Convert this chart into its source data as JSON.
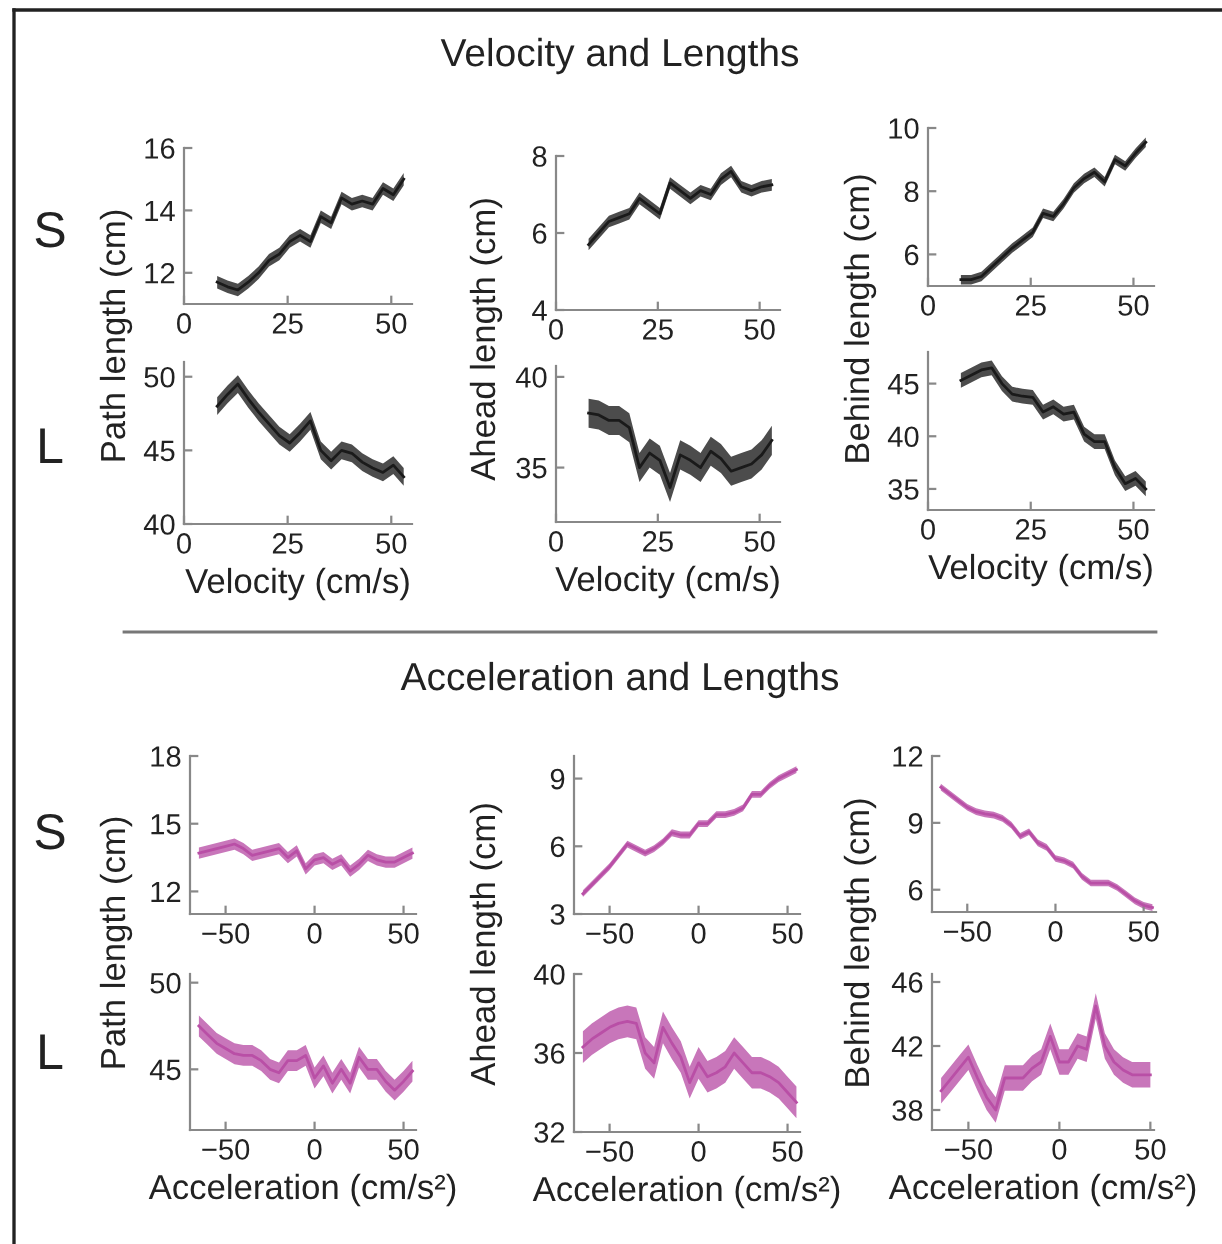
{
  "chart_data": [
    {
      "type": "other",
      "title": "Velocity and Lengths"
    },
    {
      "type": "line",
      "annotations": [
        "S"
      ],
      "ylabel": "Path length (cm)",
      "xlim": [
        0,
        55
      ],
      "xticks": [
        0,
        25,
        50
      ],
      "ylim": [
        11,
        16
      ],
      "yticks": [
        12,
        14,
        16
      ],
      "x": [
        8,
        10.5,
        13,
        15.5,
        18,
        20.5,
        23,
        25.5,
        28,
        30.5,
        33,
        35.5,
        38,
        40.5,
        43,
        45.5,
        48,
        50.5,
        53
      ],
      "series": [
        {
          "color": "#1a1a1a",
          "values": [
            11.7,
            11.55,
            11.45,
            11.7,
            12.0,
            12.4,
            12.6,
            13.0,
            13.2,
            13.0,
            13.8,
            13.6,
            14.4,
            14.2,
            14.3,
            14.2,
            14.7,
            14.5,
            15.0
          ],
          "lower": [
            11.5,
            11.35,
            11.25,
            11.5,
            11.8,
            12.2,
            12.4,
            12.8,
            13.0,
            12.8,
            13.6,
            13.4,
            14.2,
            14.0,
            14.1,
            14.0,
            14.5,
            14.3,
            14.8
          ],
          "upper": [
            11.9,
            11.75,
            11.65,
            11.9,
            12.2,
            12.6,
            12.8,
            13.2,
            13.4,
            13.2,
            14.0,
            13.8,
            14.6,
            14.4,
            14.5,
            14.4,
            14.9,
            14.7,
            15.2
          ]
        }
      ]
    },
    {
      "type": "line",
      "ylabel": "Ahead length (cm)",
      "xlim": [
        0,
        55
      ],
      "xticks": [
        0,
        25,
        50
      ],
      "ylim": [
        4,
        8
      ],
      "yticks": [
        4,
        6,
        8
      ],
      "x": [
        8,
        10.5,
        13,
        15.5,
        18,
        20.5,
        23,
        25.5,
        28,
        30.5,
        33,
        35.5,
        38,
        40.5,
        43,
        45.5,
        48,
        50.5,
        53
      ],
      "series": [
        {
          "color": "#1a1a1a",
          "values": [
            5.7,
            6.0,
            6.3,
            6.4,
            6.5,
            6.9,
            6.7,
            6.5,
            7.3,
            7.1,
            6.9,
            7.1,
            7.0,
            7.4,
            7.6,
            7.2,
            7.1,
            7.2,
            7.25
          ],
          "lower": [
            5.55,
            5.85,
            6.15,
            6.25,
            6.35,
            6.75,
            6.55,
            6.35,
            7.15,
            6.95,
            6.75,
            6.95,
            6.85,
            7.25,
            7.45,
            7.05,
            6.95,
            7.05,
            7.1
          ],
          "upper": [
            5.85,
            6.15,
            6.45,
            6.55,
            6.65,
            7.05,
            6.85,
            6.65,
            7.45,
            7.25,
            7.05,
            7.25,
            7.15,
            7.55,
            7.75,
            7.35,
            7.25,
            7.35,
            7.4
          ]
        }
      ]
    },
    {
      "type": "line",
      "ylabel": "Behind length (cm)",
      "xlim": [
        0,
        55
      ],
      "xticks": [
        0,
        25,
        50
      ],
      "ylim": [
        5,
        10
      ],
      "yticks": [
        6,
        8,
        10
      ],
      "x": [
        8,
        10.5,
        13,
        15.5,
        18,
        20.5,
        23,
        25.5,
        28,
        30.5,
        33,
        35.5,
        38,
        40.5,
        43,
        45.5,
        48,
        50.5,
        53
      ],
      "series": [
        {
          "color": "#1a1a1a",
          "values": [
            5.2,
            5.2,
            5.3,
            5.6,
            5.9,
            6.2,
            6.45,
            6.7,
            7.3,
            7.2,
            7.6,
            8.1,
            8.4,
            8.6,
            8.3,
            9.0,
            8.8,
            9.2,
            9.55
          ],
          "lower": [
            5.05,
            5.05,
            5.15,
            5.45,
            5.75,
            6.05,
            6.3,
            6.55,
            7.15,
            7.05,
            7.45,
            7.95,
            8.25,
            8.45,
            8.15,
            8.85,
            8.65,
            9.05,
            9.4
          ],
          "upper": [
            5.35,
            5.35,
            5.45,
            5.75,
            6.05,
            6.35,
            6.6,
            6.85,
            7.45,
            7.35,
            7.75,
            8.25,
            8.55,
            8.75,
            8.45,
            9.15,
            8.95,
            9.35,
            9.7
          ]
        }
      ]
    },
    {
      "type": "line",
      "annotations": [
        "L"
      ],
      "xlabel": "Velocity (cm/s)",
      "xlim": [
        0,
        55
      ],
      "xticks": [
        0,
        25,
        50
      ],
      "ylim": [
        40,
        51
      ],
      "yticks": [
        40,
        45,
        50
      ],
      "x": [
        8,
        10.5,
        13,
        15.5,
        18,
        20.5,
        23,
        25.5,
        28,
        30.5,
        33,
        35.5,
        38,
        40.5,
        43,
        45.5,
        48,
        50.5,
        53
      ],
      "series": [
        {
          "color": "#1a1a1a",
          "values": [
            48.0,
            48.8,
            49.5,
            48.5,
            47.6,
            46.8,
            46.0,
            45.5,
            46.2,
            47.0,
            45.0,
            44.3,
            45.0,
            44.8,
            44.2,
            43.8,
            43.5,
            44.0,
            43.2
          ],
          "lower": [
            47.4,
            48.2,
            48.9,
            47.9,
            47.0,
            46.2,
            45.4,
            44.9,
            45.6,
            46.4,
            44.4,
            43.7,
            44.4,
            44.2,
            43.6,
            43.2,
            42.9,
            43.4,
            42.6
          ],
          "upper": [
            48.6,
            49.4,
            50.1,
            49.1,
            48.2,
            47.4,
            46.6,
            46.1,
            46.8,
            47.6,
            45.6,
            44.9,
            45.6,
            45.4,
            44.8,
            44.4,
            44.1,
            44.6,
            43.8
          ]
        }
      ]
    },
    {
      "type": "line",
      "xlabel": "Velocity (cm/s)",
      "xlim": [
        0,
        55
      ],
      "xticks": [
        0,
        25,
        50
      ],
      "ylim": [
        32,
        40.6
      ],
      "yticks": [
        35,
        40
      ],
      "x": [
        8,
        10.5,
        13,
        15.5,
        18,
        20.5,
        23,
        25.5,
        28,
        30.5,
        33,
        35.5,
        38,
        40.5,
        43,
        45.5,
        48,
        50.5,
        53
      ],
      "series": [
        {
          "color": "#1a1a1a",
          "values": [
            38.0,
            37.9,
            37.6,
            37.6,
            37.2,
            35.0,
            35.8,
            35.4,
            33.9,
            35.7,
            35.4,
            35.0,
            35.9,
            35.5,
            34.8,
            35.0,
            35.2,
            35.7,
            36.5
          ],
          "lower": [
            37.2,
            37.1,
            36.8,
            36.8,
            36.4,
            34.2,
            35.0,
            34.6,
            33.1,
            34.9,
            34.6,
            34.2,
            35.1,
            34.7,
            34.0,
            34.2,
            34.4,
            34.9,
            35.7
          ],
          "upper": [
            38.8,
            38.7,
            38.4,
            38.4,
            38.0,
            35.8,
            36.6,
            36.2,
            34.7,
            36.5,
            36.2,
            35.8,
            36.7,
            36.3,
            35.6,
            35.8,
            36.0,
            36.5,
            37.3
          ]
        }
      ]
    },
    {
      "type": "line",
      "xlabel": "Velocity (cm/s)",
      "xlim": [
        0,
        55
      ],
      "xticks": [
        0,
        25,
        50
      ],
      "ylim": [
        33,
        48
      ],
      "yticks": [
        35,
        40,
        45
      ],
      "x": [
        8,
        10.5,
        13,
        15.5,
        18,
        20.5,
        23,
        25.5,
        28,
        30.5,
        33,
        35.5,
        38,
        40.5,
        43,
        45.5,
        48,
        50.5,
        53
      ],
      "series": [
        {
          "color": "#1a1a1a",
          "values": [
            45.3,
            45.8,
            46.3,
            46.5,
            45.0,
            44.0,
            43.8,
            43.7,
            42.3,
            42.8,
            42.1,
            42.3,
            40.2,
            39.5,
            39.5,
            37.0,
            35.5,
            36.0,
            35.0
          ],
          "lower": [
            44.6,
            45.1,
            45.6,
            45.8,
            44.3,
            43.3,
            43.1,
            43.0,
            41.6,
            42.1,
            41.4,
            41.6,
            39.5,
            38.8,
            38.8,
            36.3,
            34.8,
            35.3,
            34.3
          ],
          "upper": [
            46.0,
            46.5,
            47.0,
            47.2,
            45.7,
            44.7,
            44.5,
            44.4,
            43.0,
            43.5,
            42.8,
            43.0,
            40.9,
            40.2,
            40.2,
            37.7,
            36.2,
            36.7,
            35.7
          ]
        }
      ]
    },
    {
      "type": "other",
      "title": "Acceleration and Lengths"
    },
    {
      "type": "line",
      "annotations": [
        "S"
      ],
      "ylabel": "Path length (cm)",
      "xlim": [
        -70,
        57
      ],
      "xticks": [
        -50,
        0,
        50
      ],
      "ylim": [
        11,
        18
      ],
      "yticks": [
        12,
        15,
        18
      ],
      "x": [
        -65,
        -60,
        -55,
        -50,
        -45,
        -40,
        -35,
        -30,
        -25,
        -20,
        -15,
        -10,
        -5,
        0,
        5,
        10,
        15,
        20,
        25,
        30,
        35,
        40,
        45,
        50,
        55
      ],
      "series": [
        {
          "color": "#b94fa6",
          "values": [
            13.7,
            13.8,
            13.9,
            14.0,
            14.1,
            13.9,
            13.6,
            13.7,
            13.8,
            13.9,
            13.5,
            13.8,
            13.0,
            13.4,
            13.5,
            13.2,
            13.4,
            12.9,
            13.2,
            13.6,
            13.4,
            13.3,
            13.3,
            13.5,
            13.7
          ],
          "lower": [
            13.45,
            13.55,
            13.65,
            13.75,
            13.85,
            13.65,
            13.35,
            13.45,
            13.55,
            13.65,
            13.25,
            13.55,
            12.75,
            13.15,
            13.25,
            12.95,
            13.15,
            12.65,
            12.95,
            13.35,
            13.15,
            13.05,
            13.05,
            13.25,
            13.45
          ],
          "upper": [
            13.95,
            14.05,
            14.15,
            14.25,
            14.35,
            14.15,
            13.85,
            13.95,
            14.05,
            14.15,
            13.75,
            14.05,
            13.25,
            13.65,
            13.75,
            13.45,
            13.65,
            13.15,
            13.45,
            13.85,
            13.65,
            13.55,
            13.55,
            13.75,
            13.95
          ]
        }
      ]
    },
    {
      "type": "line",
      "ylabel": "Ahead length (cm)",
      "xlim": [
        -70,
        57
      ],
      "xticks": [
        -50,
        0,
        50
      ],
      "ylim": [
        3,
        10
      ],
      "yticks": [
        3,
        6,
        9
      ],
      "x": [
        -65,
        -60,
        -55,
        -50,
        -45,
        -40,
        -35,
        -30,
        -25,
        -20,
        -15,
        -10,
        -5,
        0,
        5,
        10,
        15,
        20,
        25,
        30,
        35,
        40,
        45,
        50,
        55
      ],
      "series": [
        {
          "color": "#b94fa6",
          "values": [
            3.9,
            4.3,
            4.7,
            5.1,
            5.6,
            6.1,
            5.9,
            5.7,
            5.9,
            6.2,
            6.6,
            6.5,
            6.5,
            7.0,
            7.0,
            7.4,
            7.4,
            7.5,
            7.7,
            8.3,
            8.3,
            8.7,
            9.0,
            9.2,
            9.4
          ],
          "lower": [
            3.75,
            4.15,
            4.55,
            4.95,
            5.45,
            5.95,
            5.75,
            5.55,
            5.75,
            6.05,
            6.45,
            6.35,
            6.35,
            6.85,
            6.85,
            7.25,
            7.25,
            7.35,
            7.55,
            8.15,
            8.15,
            8.55,
            8.85,
            9.05,
            9.25
          ],
          "upper": [
            4.05,
            4.45,
            4.85,
            5.25,
            5.75,
            6.25,
            6.05,
            5.85,
            6.05,
            6.35,
            6.75,
            6.65,
            6.65,
            7.15,
            7.15,
            7.55,
            7.55,
            7.65,
            7.85,
            8.45,
            8.45,
            8.85,
            9.15,
            9.35,
            9.55
          ]
        }
      ]
    },
    {
      "type": "line",
      "ylabel": "Behind length (cm)",
      "xlim": [
        -70,
        57
      ],
      "xticks": [
        -50,
        0,
        50
      ],
      "ylim": [
        5,
        12
      ],
      "yticks": [
        6,
        9,
        12
      ],
      "x": [
        -65,
        -60,
        -55,
        -50,
        -45,
        -40,
        -35,
        -30,
        -25,
        -20,
        -15,
        -10,
        -5,
        0,
        5,
        10,
        15,
        20,
        25,
        30,
        35,
        40,
        45,
        50,
        55
      ],
      "series": [
        {
          "color": "#b94fa6",
          "values": [
            10.6,
            10.3,
            10.0,
            9.7,
            9.5,
            9.4,
            9.35,
            9.2,
            8.9,
            8.4,
            8.6,
            8.1,
            7.9,
            7.4,
            7.3,
            7.1,
            6.6,
            6.3,
            6.3,
            6.3,
            6.1,
            5.8,
            5.5,
            5.3,
            5.2
          ],
          "lower": [
            10.45,
            10.15,
            9.85,
            9.55,
            9.35,
            9.25,
            9.2,
            9.05,
            8.75,
            8.25,
            8.45,
            7.95,
            7.75,
            7.25,
            7.15,
            6.95,
            6.45,
            6.15,
            6.15,
            6.15,
            5.95,
            5.65,
            5.35,
            5.15,
            5.05
          ],
          "upper": [
            10.75,
            10.45,
            10.15,
            9.85,
            9.65,
            9.55,
            9.5,
            9.35,
            9.05,
            8.55,
            8.75,
            8.25,
            8.05,
            7.55,
            7.45,
            7.25,
            6.75,
            6.45,
            6.45,
            6.45,
            6.25,
            5.95,
            5.65,
            5.45,
            5.35
          ]
        }
      ]
    },
    {
      "type": "line",
      "annotations": [
        "L"
      ],
      "xlabel": "Acceleration (cm/s²)",
      "xlim": [
        -70,
        57
      ],
      "xticks": [
        -50,
        0,
        50
      ],
      "ylim": [
        41.5,
        50.5
      ],
      "yticks": [
        45,
        50
      ],
      "x": [
        -65,
        -60,
        -55,
        -50,
        -45,
        -40,
        -35,
        -30,
        -25,
        -20,
        -15,
        -10,
        -5,
        0,
        5,
        10,
        15,
        20,
        25,
        30,
        35,
        40,
        45,
        50,
        55
      ],
      "series": [
        {
          "color": "#b94fa6",
          "values": [
            47.5,
            47.0,
            46.5,
            46.2,
            45.9,
            45.8,
            45.8,
            45.5,
            45.0,
            44.8,
            45.5,
            45.5,
            45.8,
            44.5,
            45.2,
            44.2,
            45.0,
            44.2,
            45.7,
            45.0,
            45.0,
            44.3,
            43.8,
            44.3,
            44.9
          ],
          "lower": [
            46.9,
            46.4,
            45.9,
            45.6,
            45.3,
            45.2,
            45.2,
            44.9,
            44.4,
            44.2,
            44.9,
            44.9,
            45.2,
            43.9,
            44.6,
            43.6,
            44.4,
            43.6,
            45.1,
            44.4,
            44.4,
            43.7,
            43.2,
            43.7,
            44.3
          ],
          "upper": [
            48.1,
            47.6,
            47.1,
            46.8,
            46.5,
            46.4,
            46.4,
            46.1,
            45.6,
            45.4,
            46.1,
            46.1,
            46.4,
            45.1,
            45.8,
            44.8,
            45.6,
            44.8,
            46.3,
            45.6,
            45.6,
            44.9,
            44.4,
            44.9,
            45.5
          ]
        }
      ]
    },
    {
      "type": "line",
      "xlabel": "Acceleration (cm/s²)",
      "xlim": [
        -70,
        57
      ],
      "xticks": [
        -50,
        0,
        50
      ],
      "ylim": [
        32,
        40
      ],
      "yticks": [
        32,
        36,
        40
      ],
      "x": [
        -65,
        -60,
        -55,
        -50,
        -45,
        -40,
        -35,
        -30,
        -25,
        -20,
        -15,
        -10,
        -5,
        0,
        5,
        10,
        15,
        20,
        25,
        30,
        35,
        40,
        45,
        50,
        55
      ],
      "series": [
        {
          "color": "#b94fa6",
          "values": [
            36.3,
            36.7,
            37.0,
            37.3,
            37.5,
            37.6,
            37.5,
            36.0,
            35.5,
            37.3,
            36.5,
            35.8,
            34.5,
            35.5,
            34.8,
            35.0,
            35.3,
            36.0,
            35.5,
            35.0,
            35.0,
            34.8,
            34.5,
            34.0,
            33.5
          ],
          "lower": [
            35.5,
            35.9,
            36.2,
            36.5,
            36.7,
            36.8,
            36.7,
            35.2,
            34.7,
            36.5,
            35.7,
            35.0,
            33.7,
            34.7,
            34.0,
            34.2,
            34.5,
            35.2,
            34.7,
            34.2,
            34.2,
            34.0,
            33.7,
            33.2,
            32.7
          ],
          "upper": [
            37.1,
            37.5,
            37.8,
            38.1,
            38.3,
            38.4,
            38.3,
            36.8,
            36.3,
            38.1,
            37.3,
            36.6,
            35.3,
            36.3,
            35.6,
            35.8,
            36.1,
            36.8,
            36.3,
            35.8,
            35.8,
            35.6,
            35.3,
            34.8,
            34.3
          ]
        }
      ]
    },
    {
      "type": "line",
      "xlabel": "Acceleration (cm/s²)",
      "xlim": [
        -70,
        52
      ],
      "xticks": [
        -50,
        0,
        50
      ],
      "ylim": [
        36.75,
        46.5
      ],
      "yticks": [
        38,
        42,
        46
      ],
      "x": [
        -65,
        -60,
        -55,
        -50,
        -45,
        -40,
        -35,
        -30,
        -25,
        -20,
        -15,
        -10,
        -5,
        0,
        5,
        10,
        15,
        20,
        25,
        30,
        35,
        40,
        45,
        50
      ],
      "series": [
        {
          "color": "#b94fa6",
          "values": [
            39.2,
            39.9,
            40.6,
            41.3,
            40.0,
            38.8,
            38.0,
            40.0,
            40.0,
            40.0,
            40.6,
            41.0,
            42.6,
            41.0,
            41.0,
            42.0,
            41.8,
            44.5,
            42.0,
            41.0,
            40.5,
            40.2,
            40.2,
            40.2
          ],
          "lower": [
            38.4,
            39.1,
            39.8,
            40.5,
            39.2,
            38.0,
            37.2,
            39.2,
            39.2,
            39.2,
            39.8,
            40.2,
            41.8,
            40.2,
            40.2,
            41.2,
            41.0,
            43.7,
            41.2,
            40.2,
            39.7,
            39.4,
            39.4,
            39.4
          ],
          "upper": [
            40.0,
            40.7,
            41.4,
            42.1,
            40.8,
            39.6,
            38.8,
            40.8,
            40.8,
            40.8,
            41.4,
            41.8,
            43.4,
            41.8,
            41.8,
            42.8,
            42.6,
            45.3,
            42.8,
            41.8,
            41.3,
            41.0,
            41.0,
            41.0
          ]
        }
      ]
    }
  ]
}
